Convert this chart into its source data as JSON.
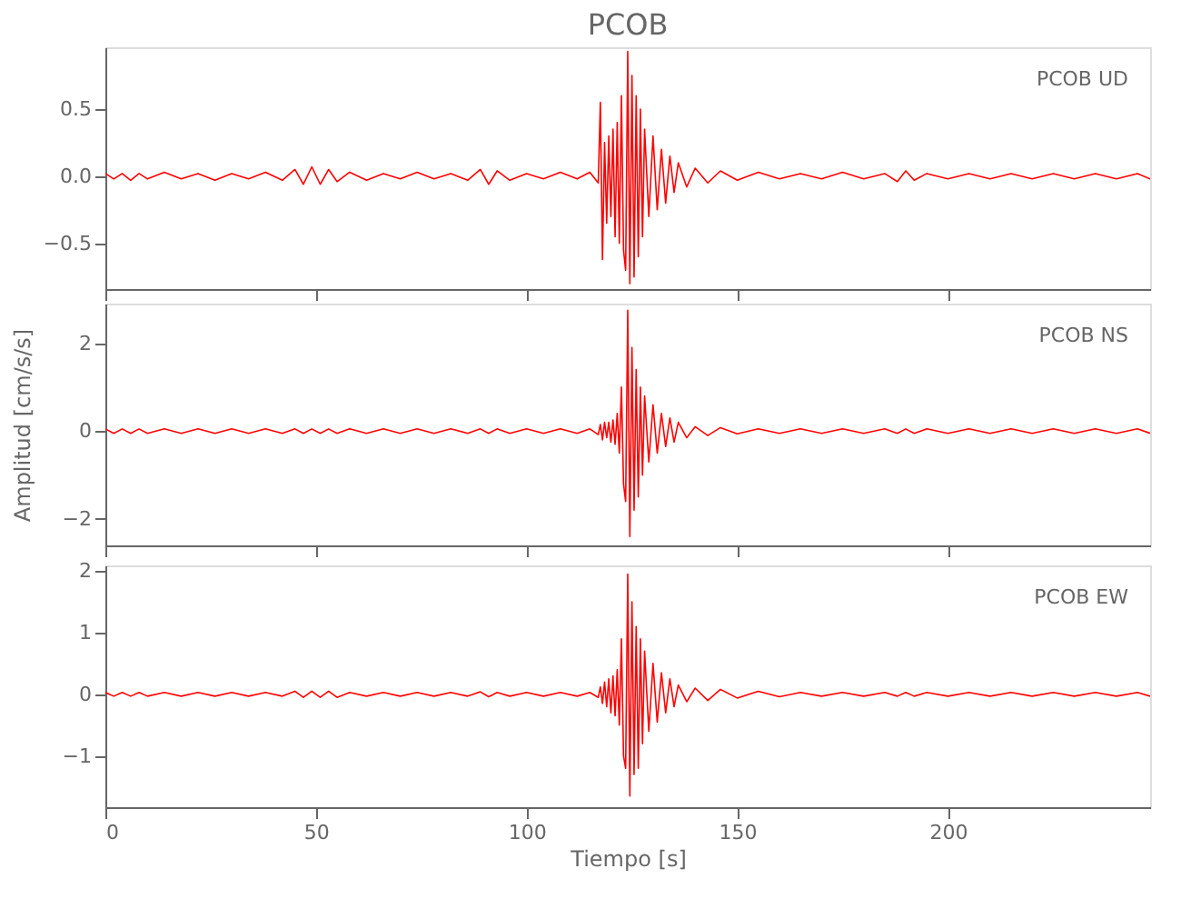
{
  "chart_data": [
    {
      "type": "line",
      "title": "PCOB",
      "annotations": [
        "PCOB   UD"
      ],
      "tick_labels": "y",
      "grid": false,
      "xlim": [
        0,
        248
      ],
      "xticks": [
        0,
        50,
        100,
        150,
        200
      ],
      "ylim": [
        -0.84,
        0.96
      ],
      "yticks": [
        -0.5,
        {
          "value": 0,
          "label": "0.0"
        },
        0.5
      ],
      "x": [
        0,
        2,
        4,
        6,
        8,
        10,
        14,
        18,
        22,
        26,
        30,
        34,
        38,
        42,
        45,
        47,
        49,
        51,
        53,
        55,
        58,
        62,
        66,
        70,
        74,
        78,
        82,
        86,
        89,
        91,
        93,
        96,
        100,
        104,
        108,
        112,
        115,
        117,
        117.5,
        118,
        118.5,
        119,
        119.5,
        120,
        120.5,
        121,
        121.5,
        122,
        122.5,
        123,
        123.5,
        124,
        124.5,
        125,
        125.5,
        126,
        126.5,
        127,
        127.5,
        128,
        129,
        130,
        131,
        132,
        133,
        134,
        135,
        136,
        138,
        140,
        143,
        146,
        150,
        155,
        160,
        165,
        170,
        175,
        180,
        185,
        188,
        190,
        192,
        195,
        200,
        205,
        210,
        215,
        220,
        225,
        230,
        235,
        240,
        245,
        248
      ],
      "series": [
        {
          "color": "#ff0000",
          "values": [
            0.02,
            -0.02,
            0.02,
            -0.03,
            0.02,
            -0.02,
            0.03,
            -0.02,
            0.02,
            -0.03,
            0.02,
            -0.02,
            0.03,
            -0.03,
            0.05,
            -0.06,
            0.07,
            -0.06,
            0.05,
            -0.04,
            0.03,
            -0.03,
            0.02,
            -0.02,
            0.03,
            -0.02,
            0.02,
            -0.03,
            0.05,
            -0.06,
            0.04,
            -0.03,
            0.02,
            -0.02,
            0.03,
            -0.02,
            0.03,
            -0.05,
            0.55,
            -0.62,
            0.25,
            -0.35,
            0.3,
            -0.3,
            0.35,
            -0.45,
            0.4,
            -0.5,
            0.6,
            -0.55,
            -0.7,
            0.93,
            -0.8,
            0.75,
            -0.75,
            0.6,
            -0.6,
            0.5,
            -0.45,
            0.35,
            -0.3,
            0.3,
            -0.25,
            0.2,
            -0.2,
            0.15,
            -0.12,
            0.1,
            -0.08,
            0.06,
            -0.05,
            0.04,
            -0.03,
            0.03,
            -0.02,
            0.02,
            -0.02,
            0.03,
            -0.02,
            0.02,
            -0.04,
            0.04,
            -0.03,
            0.02,
            -0.02,
            0.02,
            -0.02,
            0.02,
            -0.02,
            0.02,
            -0.02,
            0.02,
            -0.02,
            0.02,
            -0.02
          ]
        }
      ]
    },
    {
      "type": "line",
      "ylabel": "Amplitud [cm/s/s]",
      "annotations": [
        "PCOB   NS"
      ],
      "tick_labels": "y",
      "grid": false,
      "xlim": [
        0,
        248
      ],
      "xticks": [
        0,
        50,
        100,
        150,
        200
      ],
      "ylim": [
        -2.6,
        2.9
      ],
      "yticks": [
        -2,
        0,
        2
      ],
      "x": [
        0,
        2,
        4,
        6,
        8,
        10,
        14,
        18,
        22,
        26,
        30,
        34,
        38,
        42,
        45,
        47,
        49,
        51,
        53,
        55,
        58,
        62,
        66,
        70,
        74,
        78,
        82,
        86,
        89,
        91,
        93,
        96,
        100,
        104,
        108,
        112,
        115,
        117,
        117.5,
        118,
        118.5,
        119,
        119.5,
        120,
        120.5,
        121,
        121.5,
        122,
        122.5,
        123,
        123.5,
        124,
        124.5,
        125,
        125.5,
        126,
        126.5,
        127,
        127.5,
        128,
        129,
        130,
        131,
        132,
        133,
        134,
        135,
        136,
        138,
        140,
        143,
        146,
        150,
        155,
        160,
        165,
        170,
        175,
        180,
        185,
        188,
        190,
        192,
        195,
        200,
        205,
        210,
        215,
        220,
        225,
        230,
        235,
        240,
        245,
        248
      ],
      "series": [
        {
          "color": "#ff0000",
          "values": [
            0.05,
            -0.05,
            0.05,
            -0.05,
            0.05,
            -0.05,
            0.05,
            -0.05,
            0.05,
            -0.05,
            0.05,
            -0.05,
            0.05,
            -0.05,
            0.05,
            -0.05,
            0.05,
            -0.05,
            0.05,
            -0.05,
            0.05,
            -0.05,
            0.05,
            -0.05,
            0.05,
            -0.05,
            0.05,
            -0.05,
            0.05,
            -0.05,
            0.05,
            -0.05,
            0.05,
            -0.05,
            0.05,
            -0.05,
            0.05,
            -0.08,
            0.15,
            -0.2,
            0.2,
            -0.15,
            0.2,
            -0.25,
            0.25,
            -0.3,
            0.4,
            -0.5,
            1.0,
            -1.2,
            -1.6,
            2.75,
            -2.4,
            1.9,
            -1.8,
            1.4,
            -1.5,
            1.0,
            -1.0,
            0.8,
            -0.7,
            0.6,
            -0.5,
            0.4,
            -0.35,
            0.3,
            -0.25,
            0.2,
            -0.15,
            0.1,
            -0.1,
            0.08,
            -0.06,
            0.05,
            -0.05,
            0.05,
            -0.05,
            0.05,
            -0.05,
            0.05,
            -0.05,
            0.05,
            -0.05,
            0.05,
            -0.05,
            0.05,
            -0.05,
            0.05,
            -0.05,
            0.05,
            -0.05,
            0.05,
            -0.05,
            0.05,
            -0.05
          ]
        }
      ]
    },
    {
      "type": "line",
      "xlabel": "Tiempo [s]",
      "annotations": [
        "PCOB   EW"
      ],
      "grid": false,
      "xlim": [
        0,
        248
      ],
      "xticks": [
        0,
        50,
        100,
        150,
        200
      ],
      "ylim": [
        -1.83,
        2.09
      ],
      "yticks": [
        -1,
        0,
        1,
        2
      ],
      "x": [
        0,
        2,
        4,
        6,
        8,
        10,
        14,
        18,
        22,
        26,
        30,
        34,
        38,
        42,
        45,
        47,
        49,
        51,
        53,
        55,
        58,
        62,
        66,
        70,
        74,
        78,
        82,
        86,
        89,
        91,
        93,
        96,
        100,
        104,
        108,
        112,
        115,
        117,
        117.5,
        118,
        118.5,
        119,
        119.5,
        120,
        120.5,
        121,
        121.5,
        122,
        122.5,
        123,
        123.5,
        124,
        124.5,
        125,
        125.5,
        126,
        126.5,
        127,
        127.5,
        128,
        129,
        130,
        131,
        132,
        133,
        134,
        135,
        136,
        138,
        140,
        143,
        146,
        150,
        155,
        160,
        165,
        170,
        175,
        180,
        185,
        188,
        190,
        192,
        195,
        200,
        205,
        210,
        215,
        220,
        225,
        230,
        235,
        240,
        245,
        248
      ],
      "series": [
        {
          "color": "#ff0000",
          "values": [
            0.03,
            -0.03,
            0.03,
            -0.03,
            0.03,
            -0.03,
            0.03,
            -0.03,
            0.03,
            -0.03,
            0.03,
            -0.03,
            0.03,
            -0.03,
            0.05,
            -0.05,
            0.05,
            -0.05,
            0.05,
            -0.05,
            0.03,
            -0.03,
            0.03,
            -0.03,
            0.03,
            -0.03,
            0.03,
            -0.03,
            0.04,
            -0.04,
            0.03,
            -0.03,
            0.03,
            -0.03,
            0.03,
            -0.03,
            0.03,
            -0.05,
            0.12,
            -0.15,
            0.2,
            -0.2,
            0.25,
            -0.3,
            0.3,
            -0.35,
            0.4,
            -0.5,
            0.9,
            -1.0,
            -1.2,
            1.95,
            -1.65,
            1.5,
            -1.3,
            1.1,
            -1.2,
            0.9,
            -0.8,
            0.7,
            -0.6,
            0.5,
            -0.45,
            0.35,
            -0.3,
            0.25,
            -0.2,
            0.15,
            -0.12,
            0.1,
            -0.1,
            0.08,
            -0.06,
            0.05,
            -0.04,
            0.03,
            -0.03,
            0.03,
            -0.03,
            0.03,
            -0.03,
            0.03,
            -0.03,
            0.03,
            -0.03,
            0.03,
            -0.03,
            0.03,
            -0.03,
            0.03,
            -0.03,
            0.03,
            -0.03,
            0.03,
            -0.03
          ]
        }
      ]
    }
  ]
}
